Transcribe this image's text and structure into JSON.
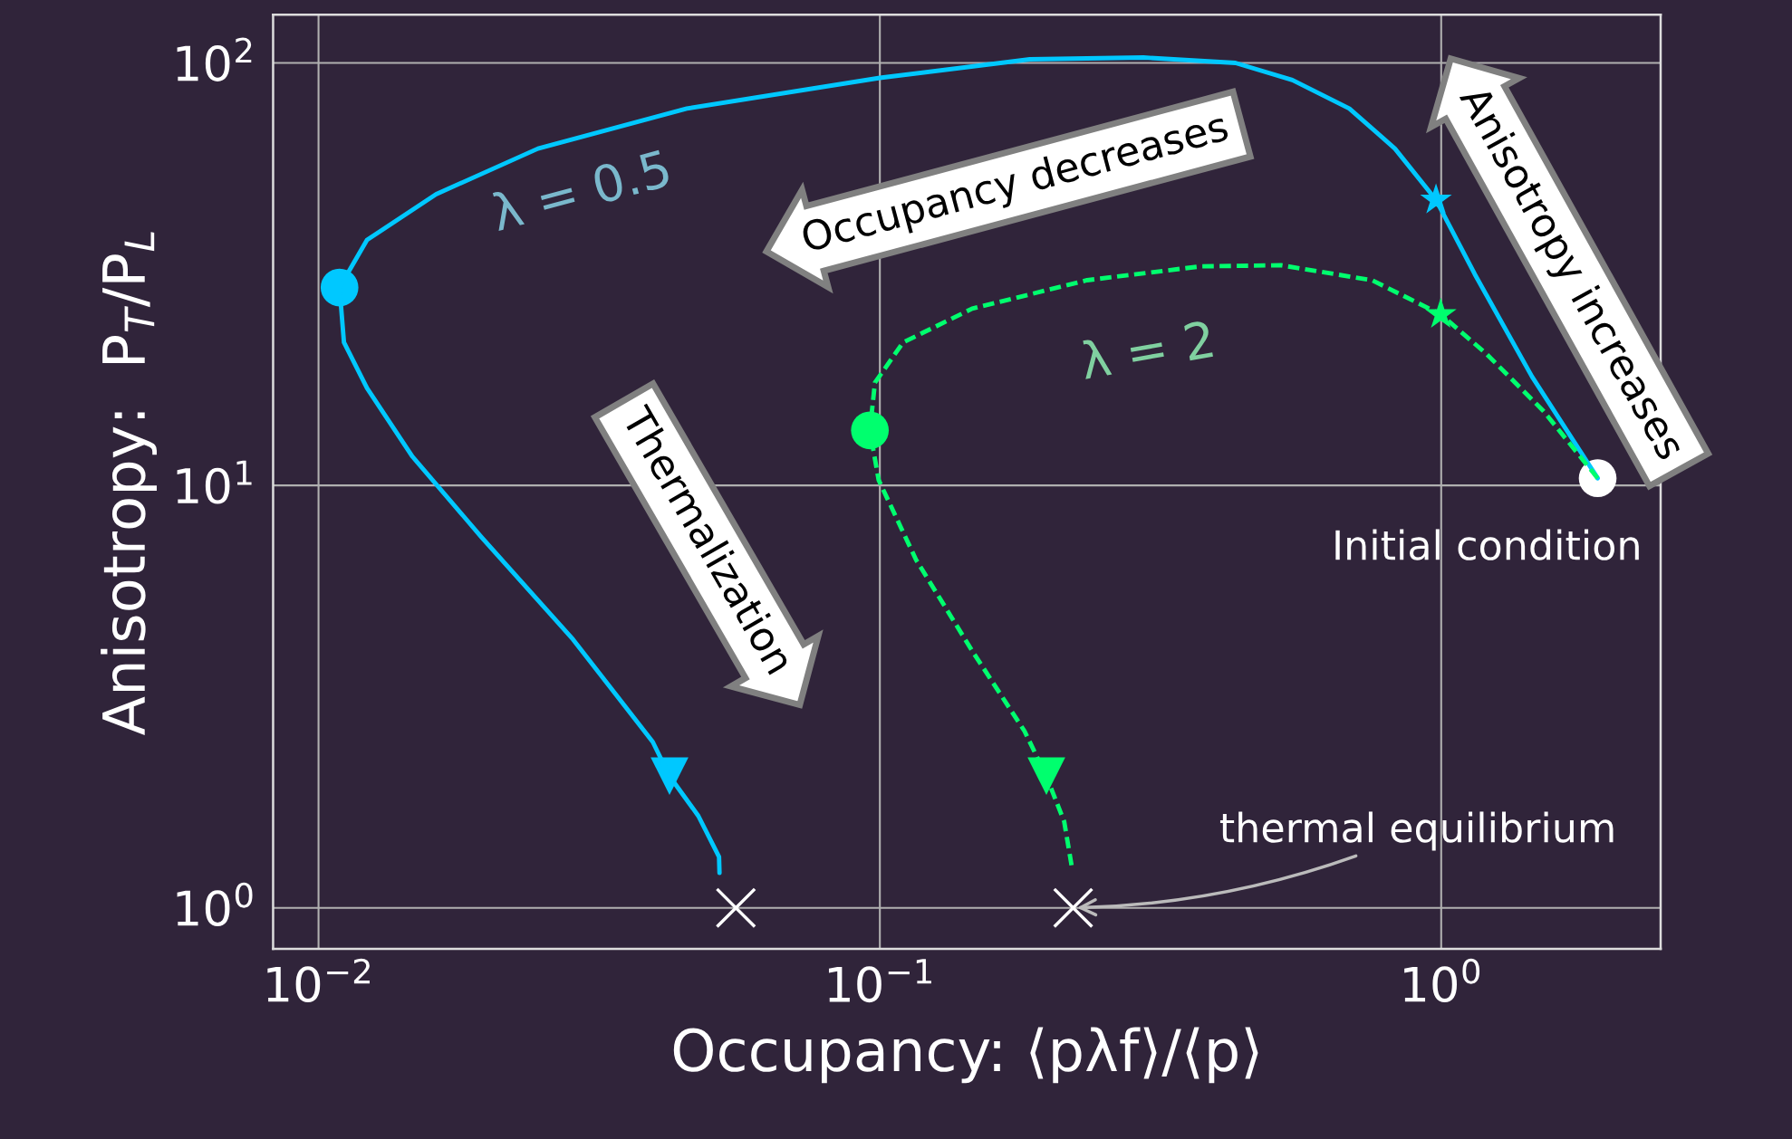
{
  "chart_data": {
    "type": "line",
    "xlabel": "Occupancy: ⟨pλf⟩/⟨p⟩",
    "ylabel": "Anisotropy:  P$_{T}$/P$_{L}$",
    "log": "xy",
    "grid": true,
    "xlim": [
      0.0083,
      2.46
    ],
    "ylim": [
      0.8,
      130
    ],
    "xticks": [
      {
        "value": 0.01,
        "label": "10$^{−2}$"
      },
      {
        "value": 0.1,
        "label": "10$^{−1}$"
      },
      {
        "value": 1,
        "label": "10$^{0}$"
      }
    ],
    "yticks": [
      {
        "value": 1,
        "label": "10$^{0}$"
      },
      {
        "value": 10,
        "label": "10$^{1}$"
      },
      {
        "value": 100,
        "label": "10$^{2}$"
      }
    ],
    "series": [
      {
        "type": "line",
        "color": "#00c8ff",
        "line_style": "solid",
        "marker": "none",
        "x": [
          1.9,
          1.451,
          1.148,
          0.979,
          0.827,
          0.686,
          0.543,
          0.43,
          0.295,
          0.185,
          0.1,
          0.0453,
          0.0246,
          0.0162,
          0.0122,
          0.0109,
          0.0111,
          0.0122,
          0.0147,
          0.0195,
          0.0284,
          0.0394,
          0.0422,
          0.0475,
          0.0517,
          0.0518
        ],
        "values": [
          10.4,
          18.1,
          31.6,
          47.4,
          62.7,
          78,
          91.1,
          100,
          103,
          102,
          92.2,
          78,
          62.7,
          48.9,
          38.1,
          29.4,
          21.8,
          17,
          11.7,
          7.55,
          4.32,
          2.47,
          2.05,
          1.65,
          1.32,
          1.21
        ]
      },
      {
        "type": "line",
        "color": "#00ff6e",
        "line_style": "dashed",
        "marker": "none",
        "x": [
          1.9,
          1.521,
          1.203,
          0.998,
          0.753,
          0.518,
          0.373,
          0.234,
          0.146,
          0.11,
          0.098,
          0.096,
          0.0995,
          0.116,
          0.146,
          0.181,
          0.198,
          0.213,
          0.22
        ],
        "values": [
          10.4,
          15,
          20.5,
          25.4,
          30.6,
          33.2,
          33,
          30.6,
          26.2,
          21.8,
          17.5,
          13.5,
          10.3,
          6.67,
          4.06,
          2.62,
          2.05,
          1.6,
          1.24
        ]
      },
      {
        "type": "scatter",
        "color": "#00c8ff",
        "marker": "circle",
        "x": [
          0.0109
        ],
        "values": [
          29.4
        ]
      },
      {
        "type": "scatter",
        "color": "#00c8ff",
        "marker": "star",
        "x": [
          0.979
        ],
        "values": [
          47.4
        ]
      },
      {
        "type": "scatter",
        "color": "#00c8ff",
        "marker": "triangle",
        "x": [
          0.0422
        ],
        "values": [
          2.05
        ]
      },
      {
        "type": "scatter",
        "color": "#00ff6e",
        "marker": "circle",
        "x": [
          0.096
        ],
        "values": [
          13.5
        ]
      },
      {
        "type": "scatter",
        "color": "#00ff6e",
        "marker": "star",
        "x": [
          0.998
        ],
        "values": [
          25.4
        ]
      },
      {
        "type": "scatter",
        "color": "#00ff6e",
        "marker": "triangle",
        "x": [
          0.198
        ],
        "values": [
          2.05
        ]
      },
      {
        "type": "scatter",
        "color": "#ffffff",
        "marker": "circle",
        "x": [
          1.9
        ],
        "values": [
          10.4
        ]
      },
      {
        "type": "scatter",
        "color": "#ffffff",
        "marker": "cross",
        "x": [
          0.0554,
          0.221
        ],
        "values": [
          1,
          1
        ]
      }
    ],
    "annotations": [
      "λ = 0.5",
      "λ = 2",
      "Occupancy decreases",
      "Anisotropy increases",
      "Thermalization",
      {
        "text": "Initial condition",
        "x": 1.9,
        "y": 10.4
      },
      {
        "text": "thermal equilibrium",
        "x": 0.221,
        "y": 1
      }
    ]
  }
}
